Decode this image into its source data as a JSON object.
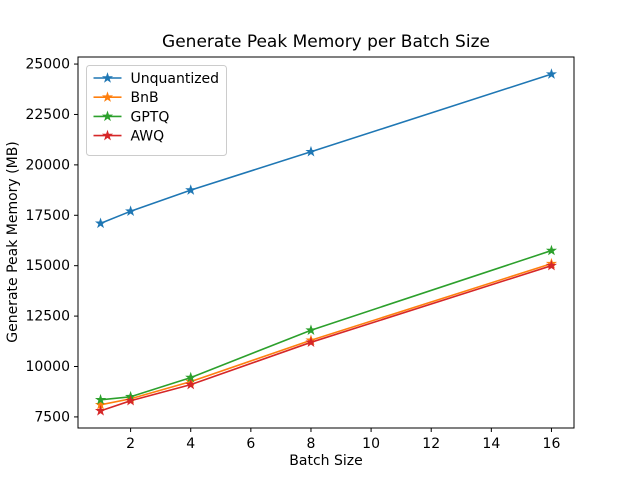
{
  "chart_data": {
    "type": "line",
    "title": "Generate Peak Memory per Batch Size",
    "xlabel": "Batch Size",
    "ylabel": "Generate Peak Memory (MB)",
    "x": [
      1,
      2,
      4,
      8,
      16
    ],
    "xlim": [
      0.25,
      16.75
    ],
    "ylim": [
      6950,
      25350
    ],
    "x_ticks": [
      2,
      4,
      6,
      8,
      10,
      12,
      14,
      16
    ],
    "y_ticks": [
      7500,
      10000,
      12500,
      15000,
      17500,
      20000,
      22500,
      25000
    ],
    "grid": false,
    "legend_position": "upper left",
    "marker": "star",
    "axis_color": "#000000",
    "legend_border_color": "#cccccc",
    "series": [
      {
        "name": "Unquantized",
        "color": "#1f77b4",
        "values": [
          17100,
          17700,
          18750,
          20650,
          24500
        ]
      },
      {
        "name": "BnB",
        "color": "#ff7f0e",
        "values": [
          8100,
          8400,
          9250,
          11300,
          15100
        ]
      },
      {
        "name": "GPTQ",
        "color": "#2ca02c",
        "values": [
          8350,
          8500,
          9450,
          11800,
          15750
        ]
      },
      {
        "name": "AWQ",
        "color": "#d62728",
        "values": [
          7800,
          8300,
          9100,
          11200,
          15000
        ]
      }
    ]
  }
}
